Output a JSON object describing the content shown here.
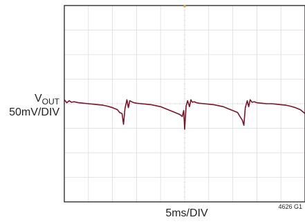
{
  "chart_data": {
    "type": "line",
    "title": "",
    "ylabel_main": "V",
    "ylabel_sub": "OUT",
    "ylabel_scale": "50mV/DIV",
    "xlabel": "5ms/DIV",
    "figure_id": "4626 G1",
    "x_divisions": 10,
    "y_divisions": 8,
    "grid": true,
    "xlim": [
      0,
      50
    ],
    "ylim": [
      -200,
      200
    ],
    "x_units": "ms",
    "y_units": "mV",
    "series": [
      {
        "color": "#7a1428",
        "x": [
          0,
          0.5,
          1,
          1.5,
          2,
          3,
          4,
          5,
          6,
          7,
          8,
          9,
          10,
          11,
          11.5,
          12,
          12.3,
          12.6,
          13,
          13.3,
          13.6,
          14,
          14.5,
          15,
          16,
          17,
          18,
          19,
          20,
          21,
          22,
          23,
          24,
          24.5,
          24.8,
          25,
          25.3,
          25.6,
          26,
          26.3,
          26.6,
          27,
          27.5,
          28,
          29,
          30,
          31,
          32,
          33,
          34,
          35,
          36,
          36.5,
          37,
          37.3,
          37.6,
          38,
          38.3,
          38.6,
          39,
          39.5,
          40,
          41,
          42,
          43,
          44,
          45,
          46,
          47,
          48,
          49,
          50
        ],
        "y": [
          8,
          2,
          6,
          3,
          4,
          2,
          1,
          0,
          -1,
          -2,
          -3,
          -5,
          -8,
          -12,
          -18,
          -20,
          -42,
          -10,
          8,
          -8,
          6,
          4,
          2,
          1,
          0,
          -1,
          -2,
          -4,
          -6,
          -10,
          -14,
          -18,
          -22,
          -26,
          -14,
          -52,
          -5,
          6,
          -6,
          8,
          3,
          4,
          2,
          1,
          0,
          -1,
          -2,
          -4,
          -6,
          -10,
          -14,
          -18,
          -26,
          -34,
          -44,
          -8,
          6,
          -6,
          8,
          3,
          4,
          2,
          1,
          0,
          0,
          -1,
          -2,
          -3,
          -5,
          -8,
          -12,
          -20
        ]
      }
    ]
  }
}
